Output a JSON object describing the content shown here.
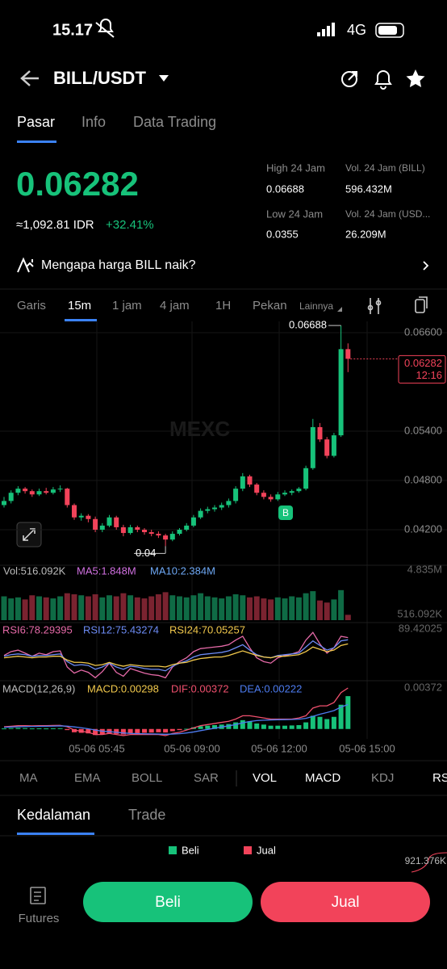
{
  "status": {
    "time": "15.17",
    "network": "4G"
  },
  "header": {
    "pair": "BILL/USDT"
  },
  "tabs": [
    "Pasar",
    "Info",
    "Data Trading"
  ],
  "price": {
    "last": "0.06282",
    "idr": "≈1,092.81 IDR",
    "change": "+32.41%"
  },
  "stats": [
    {
      "label": "High 24 Jam",
      "value": "0.06688"
    },
    {
      "label": "Vol. 24 Jam (BILL)",
      "value": "596.432M"
    },
    {
      "label": "Low 24 Jam",
      "value": "0.0355"
    },
    {
      "label": "Vol. 24 Jam (USD...",
      "value": "26.209M"
    }
  ],
  "banner": "Mengapa harga BILL naik?",
  "intervals": [
    "Garis",
    "15m",
    "1 jam",
    "4 jam",
    "1H",
    "Pekan",
    "Lainnya"
  ],
  "chart": {
    "type": "candlestick",
    "ylim": [
      0.03767,
      0.06738
    ],
    "yticks": [
      {
        "value": 0.066,
        "label": "0.06600"
      },
      {
        "value": 0.054,
        "label": "0.05400"
      },
      {
        "value": 0.048,
        "label": "0.04800"
      },
      {
        "value": 0.042,
        "label": "0.04200"
      }
    ],
    "candles": [
      [
        0.045,
        0.046,
        0.0447,
        0.0455
      ],
      [
        0.0455,
        0.0468,
        0.0452,
        0.0465
      ],
      [
        0.0465,
        0.0473,
        0.0462,
        0.047
      ],
      [
        0.047,
        0.0472,
        0.0464,
        0.0467
      ],
      [
        0.0467,
        0.0469,
        0.046,
        0.0463
      ],
      [
        0.0463,
        0.047,
        0.0461,
        0.0467
      ],
      [
        0.0467,
        0.0471,
        0.0463,
        0.0465
      ],
      [
        0.0465,
        0.0472,
        0.0463,
        0.0469
      ],
      [
        0.0469,
        0.0474,
        0.0466,
        0.047
      ],
      [
        0.047,
        0.0471,
        0.0447,
        0.045
      ],
      [
        0.045,
        0.0452,
        0.0432,
        0.0435
      ],
      [
        0.0435,
        0.044,
        0.0431,
        0.0437
      ],
      [
        0.0437,
        0.0439,
        0.0429,
        0.0433
      ],
      [
        0.0433,
        0.0436,
        0.0417,
        0.042
      ],
      [
        0.042,
        0.0428,
        0.0417,
        0.0425
      ],
      [
        0.0425,
        0.0438,
        0.0423,
        0.0435
      ],
      [
        0.0435,
        0.0437,
        0.042,
        0.0423
      ],
      [
        0.0423,
        0.0426,
        0.0412,
        0.0416
      ],
      [
        0.0416,
        0.0426,
        0.0414,
        0.0423
      ],
      [
        0.0423,
        0.0425,
        0.0417,
        0.042
      ],
      [
        0.042,
        0.0422,
        0.0414,
        0.0417
      ],
      [
        0.0417,
        0.042,
        0.0412,
        0.0415
      ],
      [
        0.0415,
        0.0418,
        0.041,
        0.0413
      ],
      [
        0.0413,
        0.0415,
        0.04,
        0.0408
      ],
      [
        0.0408,
        0.0418,
        0.0406,
        0.0415
      ],
      [
        0.0415,
        0.0422,
        0.0413,
        0.042
      ],
      [
        0.042,
        0.0428,
        0.0418,
        0.0425
      ],
      [
        0.0425,
        0.0438,
        0.0423,
        0.0435
      ],
      [
        0.0435,
        0.0446,
        0.0433,
        0.0443
      ],
      [
        0.0443,
        0.0448,
        0.044,
        0.0445
      ],
      [
        0.0445,
        0.045,
        0.0442,
        0.0447
      ],
      [
        0.0447,
        0.0453,
        0.0444,
        0.045
      ],
      [
        0.045,
        0.0458,
        0.0447,
        0.0455
      ],
      [
        0.0455,
        0.0473,
        0.0452,
        0.047
      ],
      [
        0.047,
        0.0489,
        0.0467,
        0.0485
      ],
      [
        0.0485,
        0.0487,
        0.0472,
        0.0475
      ],
      [
        0.0475,
        0.0477,
        0.0462,
        0.0465
      ],
      [
        0.0465,
        0.0468,
        0.0457,
        0.046
      ],
      [
        0.046,
        0.0463,
        0.0454,
        0.0457
      ],
      [
        0.0457,
        0.0466,
        0.0455,
        0.0463
      ],
      [
        0.0463,
        0.0468,
        0.0461,
        0.0465
      ],
      [
        0.0465,
        0.0469,
        0.0462,
        0.0467
      ],
      [
        0.0467,
        0.0472,
        0.0465,
        0.047
      ],
      [
        0.047,
        0.0498,
        0.0468,
        0.0495
      ],
      [
        0.0495,
        0.0555,
        0.0493,
        0.0545
      ],
      [
        0.0545,
        0.055,
        0.0527,
        0.053
      ],
      [
        0.053,
        0.0533,
        0.0507,
        0.051
      ],
      [
        0.051,
        0.0538,
        0.0508,
        0.0535
      ],
      [
        0.0535,
        0.06688,
        0.0533,
        0.064
      ],
      [
        0.064,
        0.0647,
        0.0612,
        0.06282
      ]
    ],
    "last_price": "0.06282",
    "last_time": "12:16",
    "high_label": "0.06688",
    "low_label": "0.04",
    "marker": "B",
    "times": [
      "05-06 05:45",
      "05-06 09:00",
      "05-06 12:00",
      "05-06 15:00"
    ],
    "volume": {
      "labels": [
        "Vol:516.092K",
        "MA5:1.848M",
        "MA10:2.384M"
      ],
      "current": "516.092K",
      "ylim": [
        0,
        4835000
      ],
      "yticks": [
        {
          "value": 4835000,
          "label": "4.835M"
        }
      ],
      "values": [
        2300000,
        2100000,
        2200000,
        2000000,
        2400000,
        2300000,
        2200000,
        2100000,
        2300000,
        2600000,
        2500000,
        2400000,
        2300000,
        2500000,
        2200000,
        2400000,
        2300000,
        2600000,
        2400000,
        2200000,
        2100000,
        2300000,
        2500000,
        2700000,
        2400000,
        2300000,
        2200000,
        2400000,
        2600000,
        2300000,
        2200000,
        2100000,
        2300000,
        2500000,
        2400000,
        2200000,
        2300000,
        2100000,
        2000000,
        2200000,
        2100000,
        2300000,
        2200000,
        2600000,
        2800000,
        1900000,
        1700000,
        2000000,
        2900000,
        516092
      ]
    },
    "rsi": {
      "ylim": [
        20,
        89.42025
      ],
      "yticks": [
        89.42025
      ],
      "series": [
        {
          "name": "RSI6:78.29395",
          "color": "#e66aa8",
          "values": [
            55,
            60,
            62,
            58,
            54,
            58,
            56,
            60,
            61,
            40,
            32,
            36,
            33,
            26,
            34,
            45,
            33,
            28,
            38,
            35,
            32,
            30,
            29,
            26,
            40,
            47,
            52,
            60,
            64,
            65,
            66,
            67,
            69,
            75,
            80,
            65,
            52,
            47,
            45,
            52,
            55,
            57,
            60,
            75,
            85,
            70,
            58,
            65,
            80,
            78.29395
          ]
        },
        {
          "name": "RSI12:75.43274",
          "color": "#6d8cf5",
          "values": [
            54,
            56,
            57,
            56,
            54,
            55,
            55,
            56,
            57,
            47,
            42,
            43,
            42,
            37,
            40,
            45,
            40,
            37,
            41,
            40,
            38,
            37,
            37,
            35,
            41,
            45,
            48,
            53,
            56,
            57,
            58,
            59,
            61,
            65,
            69,
            62,
            56,
            53,
            52,
            55,
            56,
            57,
            58,
            66,
            74,
            68,
            62,
            65,
            74,
            75.43274
          ]
        },
        {
          "name": "RSI24:70.05257",
          "color": "#f2c94c",
          "values": [
            52,
            53,
            54,
            53,
            52,
            53,
            53,
            54,
            54,
            49,
            46,
            46,
            45,
            42,
            43,
            46,
            43,
            41,
            43,
            42,
            41,
            41,
            41,
            40,
            43,
            45,
            46,
            49,
            51,
            52,
            53,
            53,
            55,
            58,
            61,
            58,
            55,
            53,
            52,
            54,
            54,
            55,
            56,
            60,
            66,
            63,
            60,
            62,
            68,
            70.05257
          ]
        }
      ]
    },
    "macd": {
      "title": "MACD(12,26,9)",
      "ylim": [
        -0.00075,
        0.00372
      ],
      "yticks": [
        0.00372
      ],
      "histogram": {
        "name": "MACD:0.00298",
        "color": "#f2c94c",
        "values": [
          5e-05,
          8e-05,
          0.0001,
          8e-05,
          5e-05,
          6e-05,
          5e-05,
          6e-05,
          7e-05,
          -0.0001,
          -0.0003,
          -0.00035,
          -0.0004,
          -0.00055,
          -0.0005,
          -0.0004,
          -0.00045,
          -0.0005,
          -0.0004,
          -0.00038,
          -0.00035,
          -0.00033,
          -0.0003,
          -0.00032,
          -0.0002,
          -0.0001,
          2e-05,
          0.00015,
          0.00025,
          0.0003,
          0.00035,
          0.0004,
          0.00045,
          0.0006,
          0.0008,
          0.0007,
          0.0005,
          0.0004,
          0.0003,
          0.0003,
          0.0003,
          0.00032,
          0.00035,
          0.0006,
          0.0012,
          0.0011,
          0.0009,
          0.0011,
          0.0022,
          0.00298
        ]
      },
      "series": [
        {
          "name": "DIF:0.00372",
          "color": "#f0506e",
          "values": [
            0.0002,
            0.00025,
            0.0003,
            0.0003,
            0.00028,
            0.0003,
            0.0003,
            0.00032,
            0.00033,
            0.0002,
            -0.0001,
            -0.0002,
            -0.0003,
            -0.0005,
            -0.0005,
            -0.0004,
            -0.0005,
            -0.0006,
            -0.0005,
            -0.0005,
            -0.0005,
            -0.0005,
            -0.0005,
            -0.0006,
            -0.0004,
            -0.0003,
            -0.0001,
            0.0001,
            0.0003,
            0.0004,
            0.0005,
            0.0006,
            0.0007,
            0.0009,
            0.0012,
            0.0012,
            0.0011,
            0.001,
            0.0009,
            0.0009,
            0.0009,
            0.0009,
            0.001,
            0.0012,
            0.0019,
            0.0021,
            0.0021,
            0.0024,
            0.0033,
            0.00372
          ]
        },
        {
          "name": "DEA:0.00222",
          "color": "#4d7cf0",
          "values": [
            0.00015,
            0.00018,
            0.0002,
            0.00022,
            0.00023,
            0.00024,
            0.00025,
            0.00026,
            0.00028,
            0.00026,
            0.00019,
            0.00011,
            2e-05,
            -0.0001,
            -0.0002,
            -0.00024,
            -0.0003,
            -0.00036,
            -0.0004,
            -0.00042,
            -0.00044,
            -0.00045,
            -0.00046,
            -0.00048,
            -0.00046,
            -0.00043,
            -0.00036,
            -0.00027,
            -0.00015,
            -4e-05,
            7e-05,
            0.00018,
            0.00028,
            0.0004,
            0.00056,
            0.00068,
            0.00076,
            0.0008,
            0.00082,
            0.00084,
            0.00085,
            0.00086,
            0.00089,
            0.00096,
            0.00115,
            0.00134,
            0.00149,
            0.00167,
            0.00199,
            0.00222
          ]
        }
      ]
    }
  },
  "indicators": [
    "MA",
    "EMA",
    "BOLL",
    "SAR",
    "VOL",
    "MACD",
    "KDJ",
    "RS"
  ],
  "depth_tabs": [
    "Kedalaman",
    "Trade"
  ],
  "depth_legend": [
    "Beli",
    "Jual"
  ],
  "depth_value": "921.376K",
  "nav": "Futures",
  "buttons": [
    "Beli",
    "Jual"
  ]
}
